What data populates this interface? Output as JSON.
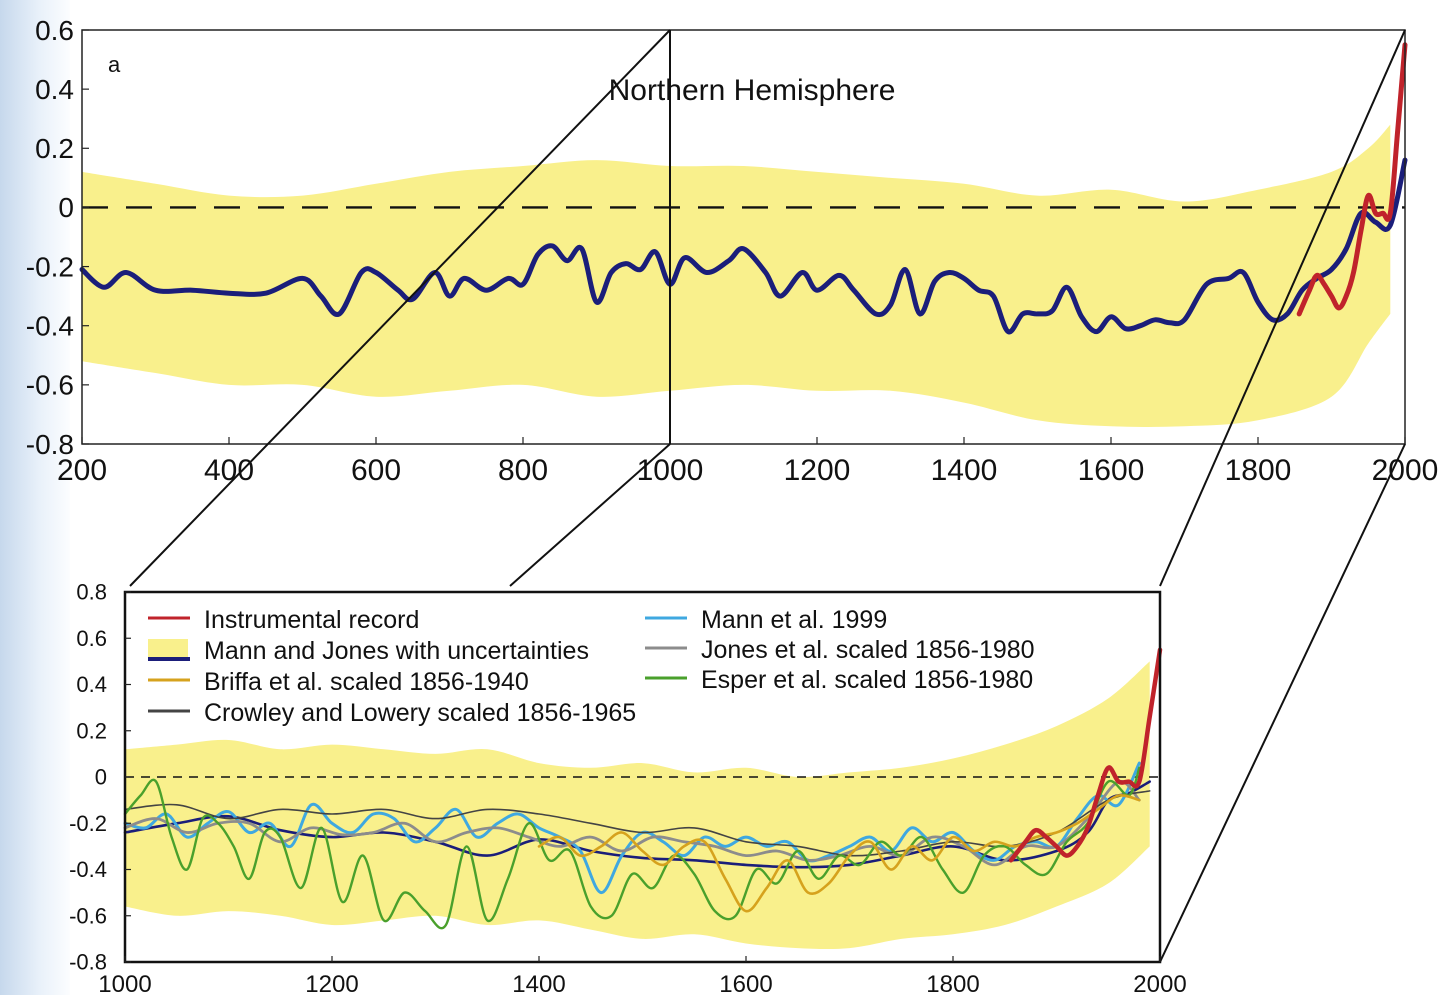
{
  "chart_data": [
    {
      "type": "line",
      "panel_label": "a",
      "title": "Northern Hemisphere",
      "xlabel": "",
      "ylabel": "",
      "xlim": [
        200,
        2000
      ],
      "ylim": [
        -0.8,
        0.6
      ],
      "x_ticks": [
        "200",
        "400",
        "600",
        "800",
        "1000",
        "1200",
        "1400",
        "1600",
        "1800",
        "2000"
      ],
      "y_ticks": [
        "0.6",
        "0.4",
        "0.2",
        "0",
        "-0.2",
        "-0.4",
        "-0.6",
        "-0.8"
      ],
      "reference_line": {
        "y": 0,
        "style": "dashed"
      },
      "zoom_marker_x": 1000,
      "series": [
        {
          "kind": "band",
          "color": "#f9f08c",
          "x": [
            200,
            300,
            400,
            500,
            600,
            700,
            800,
            900,
            1000,
            1100,
            1200,
            1300,
            1400,
            1500,
            1600,
            1700,
            1800,
            1900,
            1950,
            1980
          ],
          "upper": [
            0.12,
            0.08,
            0.04,
            0.04,
            0.08,
            0.12,
            0.14,
            0.16,
            0.14,
            0.14,
            0.12,
            0.1,
            0.08,
            0.04,
            0.06,
            0.02,
            0.06,
            0.12,
            0.2,
            0.28
          ],
          "lower": [
            -0.52,
            -0.56,
            -0.6,
            -0.6,
            -0.64,
            -0.62,
            -0.6,
            -0.64,
            -0.62,
            -0.6,
            -0.62,
            -0.62,
            -0.66,
            -0.72,
            -0.74,
            -0.74,
            -0.72,
            -0.64,
            -0.46,
            -0.36
          ]
        },
        {
          "kind": "line",
          "color": "#1b1e7a",
          "x": [
            200,
            230,
            260,
            300,
            350,
            400,
            450,
            500,
            525,
            550,
            580,
            600,
            630,
            650,
            680,
            700,
            720,
            750,
            780,
            800,
            820,
            840,
            860,
            880,
            900,
            920,
            940,
            960,
            980,
            1000,
            1020,
            1050,
            1080,
            1100,
            1130,
            1150,
            1180,
            1200,
            1230,
            1250,
            1280,
            1300,
            1320,
            1340,
            1360,
            1380,
            1400,
            1420,
            1440,
            1460,
            1480,
            1500,
            1520,
            1540,
            1560,
            1580,
            1600,
            1620,
            1640,
            1660,
            1680,
            1700,
            1730,
            1760,
            1780,
            1800,
            1820,
            1840,
            1860,
            1880,
            1900,
            1920,
            1940,
            1960,
            1980,
            2000
          ],
          "y": [
            -0.21,
            -0.27,
            -0.22,
            -0.28,
            -0.28,
            -0.29,
            -0.29,
            -0.24,
            -0.3,
            -0.36,
            -0.22,
            -0.22,
            -0.28,
            -0.31,
            -0.22,
            -0.3,
            -0.24,
            -0.28,
            -0.24,
            -0.26,
            -0.16,
            -0.13,
            -0.18,
            -0.14,
            -0.32,
            -0.22,
            -0.19,
            -0.21,
            -0.15,
            -0.26,
            -0.17,
            -0.22,
            -0.18,
            -0.14,
            -0.22,
            -0.3,
            -0.22,
            -0.28,
            -0.23,
            -0.28,
            -0.36,
            -0.33,
            -0.21,
            -0.36,
            -0.25,
            -0.22,
            -0.24,
            -0.28,
            -0.3,
            -0.42,
            -0.36,
            -0.36,
            -0.35,
            -0.27,
            -0.37,
            -0.42,
            -0.37,
            -0.41,
            -0.4,
            -0.38,
            -0.39,
            -0.38,
            -0.26,
            -0.24,
            -0.22,
            -0.32,
            -0.38,
            -0.36,
            -0.28,
            -0.24,
            -0.21,
            -0.14,
            -0.02,
            -0.05,
            -0.06,
            0.16
          ]
        },
        {
          "kind": "line",
          "color": "#c0232b",
          "x": [
            1856,
            1870,
            1880,
            1890,
            1900,
            1910,
            1920,
            1930,
            1940,
            1950,
            1960,
            1970,
            1980,
            1990,
            2000
          ],
          "y": [
            -0.36,
            -0.28,
            -0.23,
            -0.26,
            -0.3,
            -0.34,
            -0.3,
            -0.22,
            -0.08,
            0.04,
            -0.02,
            -0.02,
            -0.02,
            0.26,
            0.55
          ]
        }
      ]
    },
    {
      "type": "line",
      "xlabel": "",
      "ylabel": "",
      "xlim": [
        1000,
        2000
      ],
      "ylim": [
        -0.8,
        0.8
      ],
      "x_ticks": [
        "1000",
        "1200",
        "1400",
        "1600",
        "1800",
        "2000"
      ],
      "y_ticks": [
        "0.8",
        "0.6",
        "0.4",
        "0.2",
        "0",
        "-0.2",
        "-0.4",
        "-0.6",
        "-0.8"
      ],
      "reference_line": {
        "y": 0,
        "style": "dashed"
      },
      "legend": {
        "placement": "top",
        "left_column": [
          {
            "label": "Instrumental record",
            "color": "#c0232b"
          },
          {
            "label": "Mann and Jones with uncertainties",
            "color": "#1b1e7a",
            "band_color": "#f9f08c"
          },
          {
            "label": "Briffa et al. scaled 1856-1940",
            "color": "#d6a21d"
          },
          {
            "label": "Crowley and Lowery scaled 1856-1965",
            "color": "#444444"
          }
        ],
        "right_column": [
          {
            "label": "Mann et al. 1999",
            "color": "#3fa8e0"
          },
          {
            "label": "Jones et al. scaled 1856-1980",
            "color": "#8c8c8c"
          },
          {
            "label": "Esper et al. scaled 1856-1980",
            "color": "#4aa02c"
          }
        ]
      },
      "series": [
        {
          "kind": "band",
          "color": "#f9f08c",
          "x": [
            1000,
            1050,
            1100,
            1150,
            1200,
            1250,
            1300,
            1350,
            1400,
            1450,
            1500,
            1550,
            1600,
            1650,
            1700,
            1750,
            1800,
            1850,
            1900,
            1950,
            1990
          ],
          "upper": [
            0.12,
            0.14,
            0.16,
            0.12,
            0.14,
            0.12,
            0.1,
            0.12,
            0.06,
            0.04,
            0.06,
            0.02,
            0.04,
            0.0,
            0.02,
            0.04,
            0.08,
            0.14,
            0.22,
            0.34,
            0.5
          ],
          "lower": [
            -0.56,
            -0.6,
            -0.58,
            -0.6,
            -0.64,
            -0.62,
            -0.6,
            -0.64,
            -0.62,
            -0.66,
            -0.7,
            -0.68,
            -0.72,
            -0.74,
            -0.74,
            -0.7,
            -0.68,
            -0.64,
            -0.56,
            -0.46,
            -0.3
          ]
        },
        {
          "name": "Mann and Jones with uncertainties",
          "color": "#1b1e7a",
          "x": [
            1000,
            1050,
            1100,
            1150,
            1200,
            1250,
            1300,
            1350,
            1400,
            1450,
            1500,
            1550,
            1600,
            1650,
            1700,
            1750,
            1800,
            1850,
            1900,
            1930,
            1950,
            1970,
            1990
          ],
          "y": [
            -0.24,
            -0.2,
            -0.17,
            -0.23,
            -0.26,
            -0.24,
            -0.28,
            -0.34,
            -0.27,
            -0.32,
            -0.35,
            -0.36,
            -0.38,
            -0.39,
            -0.38,
            -0.34,
            -0.3,
            -0.36,
            -0.32,
            -0.24,
            -0.1,
            -0.07,
            -0.02
          ]
        },
        {
          "name": "Mann et al. 1999",
          "color": "#3fa8e0",
          "x": [
            1000,
            1020,
            1040,
            1060,
            1080,
            1100,
            1120,
            1140,
            1160,
            1180,
            1200,
            1220,
            1240,
            1260,
            1280,
            1300,
            1320,
            1340,
            1360,
            1380,
            1400,
            1420,
            1440,
            1460,
            1480,
            1500,
            1520,
            1540,
            1560,
            1580,
            1600,
            1620,
            1640,
            1660,
            1680,
            1700,
            1720,
            1740,
            1760,
            1780,
            1800,
            1820,
            1840,
            1860,
            1880,
            1900,
            1920,
            1940,
            1960,
            1980
          ],
          "y": [
            -0.2,
            -0.22,
            -0.16,
            -0.26,
            -0.2,
            -0.15,
            -0.24,
            -0.2,
            -0.3,
            -0.12,
            -0.2,
            -0.24,
            -0.16,
            -0.18,
            -0.28,
            -0.22,
            -0.14,
            -0.26,
            -0.2,
            -0.16,
            -0.22,
            -0.26,
            -0.32,
            -0.5,
            -0.34,
            -0.24,
            -0.28,
            -0.34,
            -0.26,
            -0.3,
            -0.26,
            -0.3,
            -0.28,
            -0.36,
            -0.34,
            -0.3,
            -0.26,
            -0.32,
            -0.22,
            -0.28,
            -0.24,
            -0.32,
            -0.36,
            -0.3,
            -0.28,
            -0.3,
            -0.18,
            -0.08,
            -0.12,
            0.06
          ]
        },
        {
          "name": "Jones et al. scaled 1856-1980",
          "color": "#8c8c8c",
          "x": [
            1000,
            1030,
            1060,
            1090,
            1120,
            1150,
            1180,
            1210,
            1240,
            1270,
            1300,
            1330,
            1360,
            1390,
            1420,
            1450,
            1480,
            1510,
            1540,
            1570,
            1600,
            1630,
            1660,
            1690,
            1720,
            1750,
            1780,
            1810,
            1840,
            1870,
            1900,
            1930,
            1960,
            1980
          ],
          "y": [
            -0.22,
            -0.18,
            -0.24,
            -0.2,
            -0.2,
            -0.28,
            -0.22,
            -0.25,
            -0.24,
            -0.2,
            -0.28,
            -0.24,
            -0.22,
            -0.26,
            -0.3,
            -0.26,
            -0.32,
            -0.26,
            -0.28,
            -0.3,
            -0.34,
            -0.32,
            -0.36,
            -0.34,
            -0.3,
            -0.34,
            -0.26,
            -0.3,
            -0.38,
            -0.3,
            -0.3,
            -0.18,
            -0.02,
            -0.1
          ]
        },
        {
          "name": "Crowley and Lowery scaled 1856-1965",
          "color": "#444444",
          "x": [
            1000,
            1050,
            1100,
            1150,
            1200,
            1250,
            1300,
            1350,
            1400,
            1450,
            1500,
            1550,
            1600,
            1650,
            1700,
            1750,
            1800,
            1850,
            1900,
            1950,
            1990
          ],
          "y": [
            -0.14,
            -0.12,
            -0.18,
            -0.14,
            -0.16,
            -0.14,
            -0.18,
            -0.14,
            -0.16,
            -0.2,
            -0.24,
            -0.22,
            -0.28,
            -0.3,
            -0.34,
            -0.32,
            -0.28,
            -0.3,
            -0.24,
            -0.1,
            -0.06
          ]
        },
        {
          "name": "Esper et al. scaled 1856-1980",
          "color": "#4aa02c",
          "x": [
            1000,
            1015,
            1030,
            1045,
            1060,
            1075,
            1090,
            1105,
            1120,
            1135,
            1150,
            1170,
            1190,
            1210,
            1230,
            1250,
            1270,
            1290,
            1310,
            1330,
            1350,
            1370,
            1390,
            1410,
            1430,
            1450,
            1470,
            1490,
            1510,
            1530,
            1550,
            1570,
            1590,
            1610,
            1630,
            1650,
            1670,
            1690,
            1710,
            1730,
            1750,
            1770,
            1790,
            1810,
            1830,
            1850,
            1870,
            1890,
            1910,
            1930,
            1950,
            1970,
            1980
          ],
          "y": [
            -0.16,
            -0.08,
            -0.02,
            -0.26,
            -0.4,
            -0.18,
            -0.2,
            -0.3,
            -0.44,
            -0.24,
            -0.26,
            -0.48,
            -0.22,
            -0.54,
            -0.34,
            -0.62,
            -0.5,
            -0.58,
            -0.64,
            -0.3,
            -0.62,
            -0.44,
            -0.2,
            -0.36,
            -0.32,
            -0.56,
            -0.6,
            -0.42,
            -0.48,
            -0.34,
            -0.42,
            -0.58,
            -0.6,
            -0.4,
            -0.46,
            -0.32,
            -0.44,
            -0.34,
            -0.38,
            -0.28,
            -0.34,
            -0.26,
            -0.4,
            -0.5,
            -0.34,
            -0.3,
            -0.38,
            -0.42,
            -0.28,
            -0.2,
            -0.02,
            -0.08,
            0.04
          ]
        },
        {
          "name": "Briffa et al. scaled 1856-1940",
          "color": "#d6a21d",
          "x": [
            1400,
            1420,
            1440,
            1460,
            1480,
            1500,
            1520,
            1540,
            1560,
            1580,
            1600,
            1620,
            1640,
            1660,
            1680,
            1700,
            1720,
            1740,
            1760,
            1780,
            1800,
            1820,
            1840,
            1860,
            1880,
            1900,
            1920,
            1940,
            1960,
            1980
          ],
          "y": [
            -0.3,
            -0.26,
            -0.34,
            -0.3,
            -0.24,
            -0.32,
            -0.38,
            -0.3,
            -0.28,
            -0.44,
            -0.58,
            -0.48,
            -0.36,
            -0.5,
            -0.46,
            -0.34,
            -0.28,
            -0.4,
            -0.3,
            -0.36,
            -0.26,
            -0.32,
            -0.28,
            -0.3,
            -0.26,
            -0.24,
            -0.2,
            -0.14,
            -0.08,
            -0.1
          ]
        },
        {
          "name": "Instrumental record",
          "color": "#c0232b",
          "x": [
            1856,
            1870,
            1880,
            1890,
            1900,
            1910,
            1920,
            1930,
            1940,
            1950,
            1960,
            1970,
            1980,
            1990,
            2000
          ],
          "y": [
            -0.36,
            -0.28,
            -0.23,
            -0.26,
            -0.3,
            -0.34,
            -0.3,
            -0.22,
            -0.08,
            0.04,
            -0.02,
            -0.02,
            -0.02,
            0.26,
            0.55
          ]
        }
      ]
    }
  ]
}
